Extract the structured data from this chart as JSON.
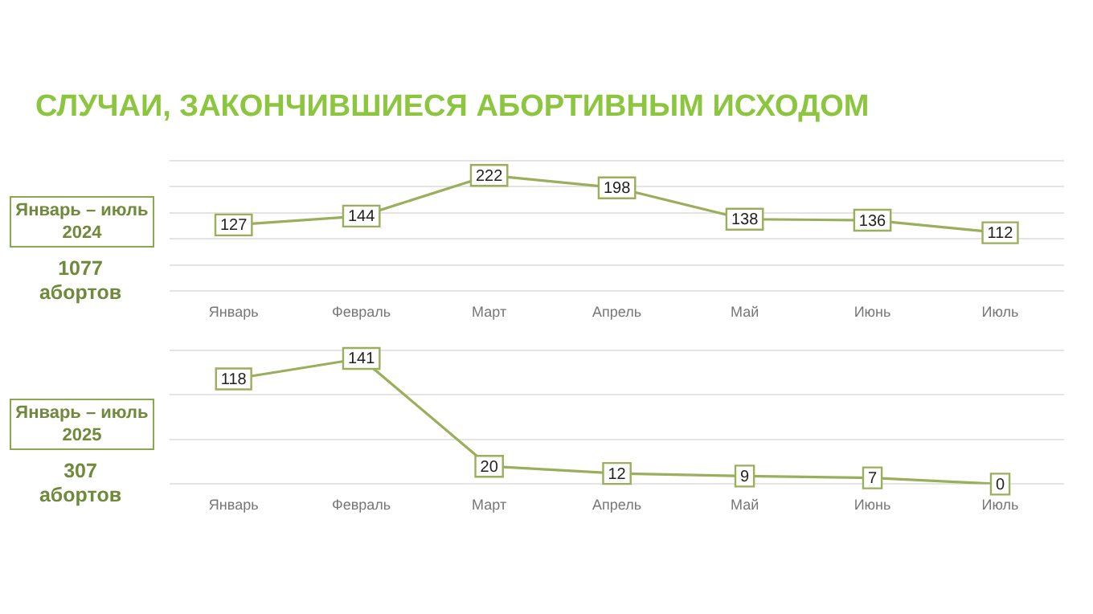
{
  "chart_data": [
    {
      "type": "line",
      "title": "СЛУЧАИ, ЗАКОНЧИВШИЕСЯ АБОРТИВНЫМ ИСХОДОМ",
      "categories": [
        "Январь",
        "Февраль",
        "Март",
        "Апрель",
        "Май",
        "Июнь",
        "Июль"
      ],
      "series": [
        {
          "color": "#9aaf5c",
          "values": [
            127,
            144,
            222,
            198,
            138,
            136,
            112
          ]
        }
      ],
      "ylim": [
        0,
        250
      ],
      "yticks": [
        {
          "value": 0,
          "label": null
        },
        {
          "value": 50,
          "label": null
        },
        {
          "value": 100,
          "label": null
        },
        {
          "value": 150,
          "label": null
        },
        {
          "value": 200,
          "label": null
        },
        {
          "value": 250,
          "label": null
        }
      ],
      "grid": "y",
      "tick_labels": "x",
      "data_labels": true,
      "marker": "square",
      "annotations": [
        "Январь – июль 2024",
        "1077 абортов"
      ]
    },
    {
      "type": "line",
      "categories": [
        "Январь",
        "Февраль",
        "Март",
        "Апрель",
        "Май",
        "Июнь",
        "Июль"
      ],
      "series": [
        {
          "color": "#9aaf5c",
          "values": [
            118,
            141,
            20,
            12,
            9,
            7,
            0
          ]
        }
      ],
      "ylim": [
        0,
        150
      ],
      "yticks": [
        {
          "value": 0,
          "label": null
        },
        {
          "value": 50,
          "label": null
        },
        {
          "value": 100,
          "label": null
        },
        {
          "value": 150,
          "label": null
        }
      ],
      "grid": "y",
      "tick_labels": "x",
      "data_labels": true,
      "marker": "square",
      "annotations": [
        "Январь – июль 2025",
        "307 абортов"
      ]
    }
  ]
}
